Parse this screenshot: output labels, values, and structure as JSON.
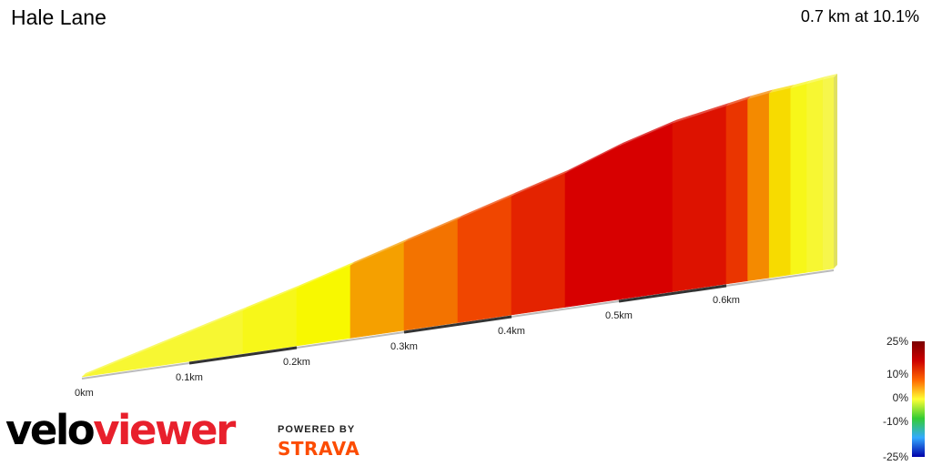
{
  "title": "Hale Lane",
  "summary": "0.7 km at 10.1%",
  "branding": {
    "velo": "velo",
    "viewer": "viewer",
    "powered_by": "POWERED BY",
    "strava": "STRAVA"
  },
  "chart_data": {
    "type": "area",
    "title": "Hale Lane",
    "xlabel": "",
    "ylabel": "",
    "x_unit": "km",
    "x_ticks": [
      "0km",
      "0.1km",
      "0.2km",
      "0.3km",
      "0.4km",
      "0.5km",
      "0.6km"
    ],
    "x_tick_values": [
      0,
      0.1,
      0.2,
      0.3,
      0.4,
      0.5,
      0.6
    ],
    "total_distance_km": 0.7,
    "average_gradient_percent": 10.1,
    "profile": {
      "x_km": [
        0,
        0.05,
        0.1,
        0.15,
        0.2,
        0.25,
        0.3,
        0.35,
        0.4,
        0.45,
        0.5,
        0.55,
        0.6,
        0.62,
        0.64,
        0.66,
        0.675,
        0.69,
        0.7
      ],
      "relative_height": [
        0,
        0.075,
        0.15,
        0.225,
        0.3,
        0.38,
        0.46,
        0.54,
        0.62,
        0.7,
        0.8,
        0.88,
        0.93,
        0.95,
        0.965,
        0.975,
        0.985,
        0.995,
        1.0
      ],
      "gradient_percent": [
        7,
        7,
        7,
        8,
        9,
        12,
        14,
        16,
        18,
        20,
        20,
        19,
        17,
        13,
        10,
        8,
        7,
        6
      ]
    },
    "legend": {
      "type": "colorbar",
      "placement": "bottom-right",
      "labels": [
        "25%",
        "10%",
        "0%",
        "-10%",
        "-25%"
      ],
      "values": [
        25,
        10,
        0,
        -10,
        -25
      ],
      "colors": [
        "#7a0000",
        "#cc0000",
        "#ff6600",
        "#ffff33",
        "#33cc33",
        "#33aaff",
        "#0000aa"
      ]
    }
  }
}
